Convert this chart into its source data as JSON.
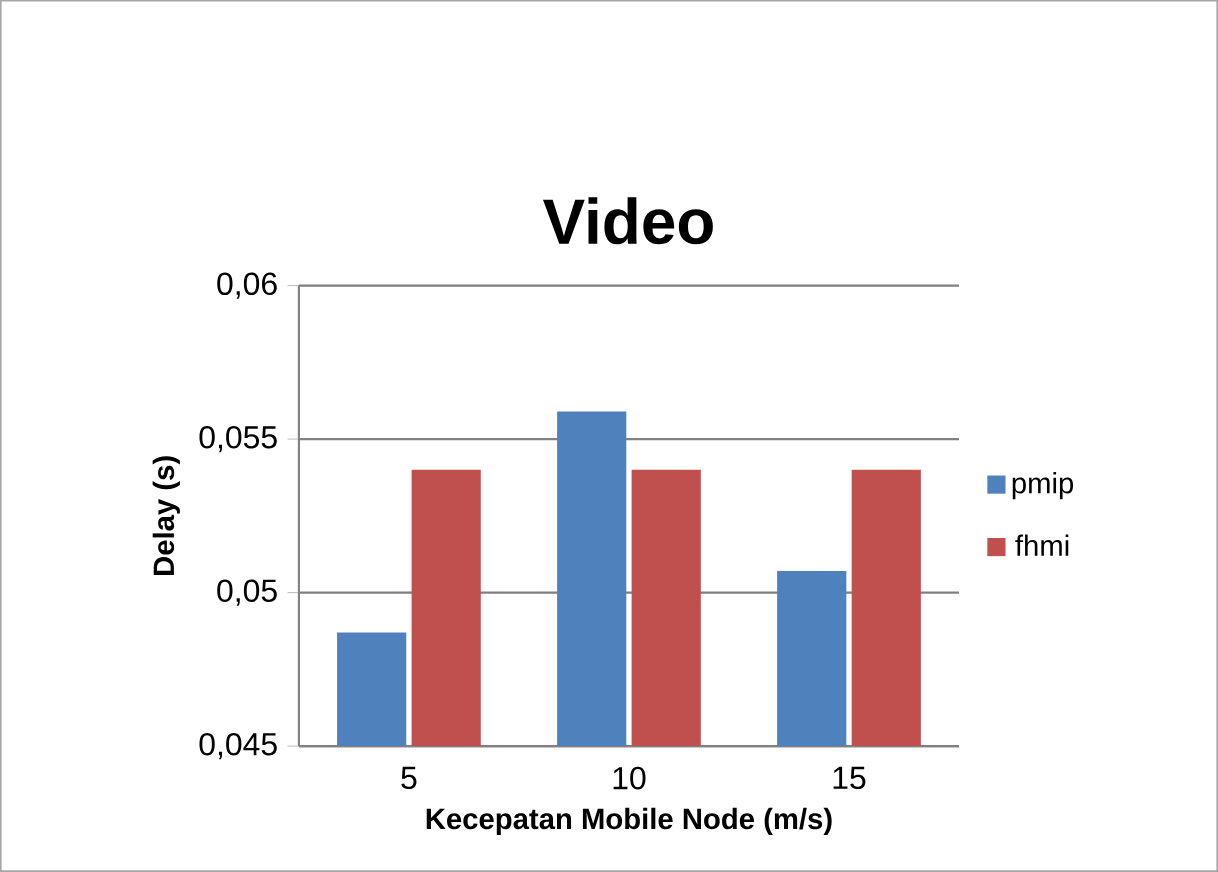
{
  "chart_data": {
    "type": "bar",
    "title": "Video",
    "xlabel": "Kecepatan Mobile Node (m/s)",
    "ylabel": "Delay (s)",
    "categories": [
      "5",
      "10",
      "15"
    ],
    "series": [
      {
        "name": "pmip",
        "color": "#4f81bd",
        "values": [
          0.0487,
          0.0559,
          0.0507
        ]
      },
      {
        "name": "fhmi",
        "color": "#c0504d",
        "values": [
          0.054,
          0.054,
          0.054
        ]
      }
    ],
    "ylim": [
      0.045,
      0.06
    ],
    "yticks": [
      {
        "value": 0.045,
        "label": "0,045"
      },
      {
        "value": 0.05,
        "label": "0,05"
      },
      {
        "value": 0.055,
        "label": "0,055"
      },
      {
        "value": 0.06,
        "label": "0,06"
      }
    ],
    "grid": "y",
    "legend": "right"
  }
}
